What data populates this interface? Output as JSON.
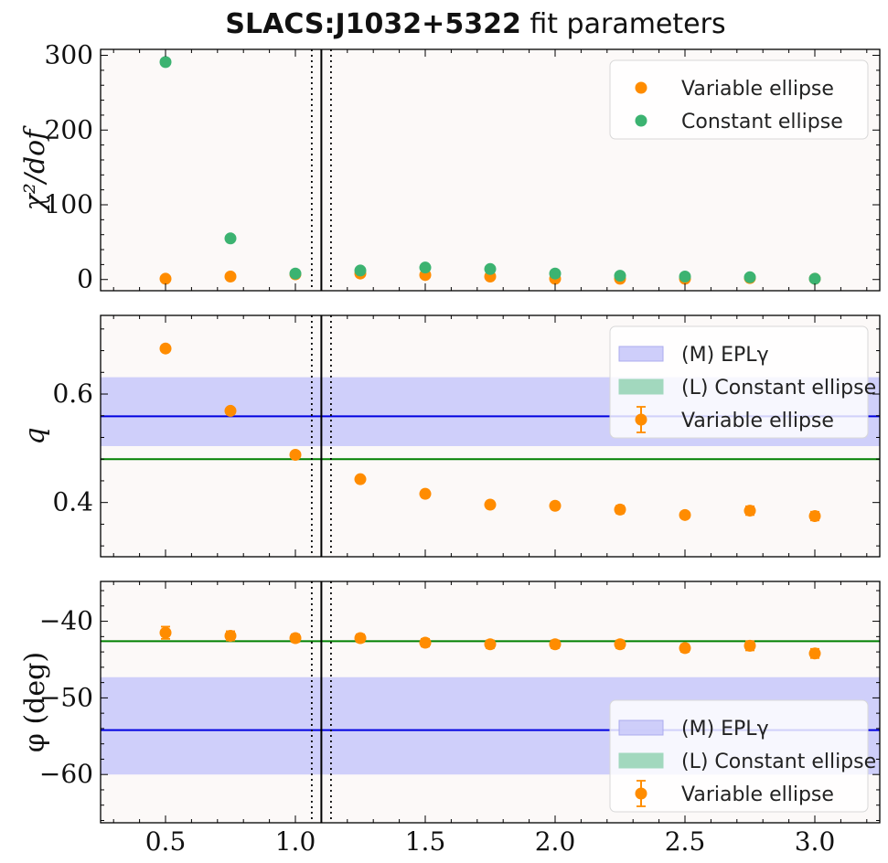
{
  "figure": {
    "title_bold": "SLACS:J1032+5322",
    "title_rest": " fit parameters",
    "colors": {
      "variable": "#ff8c00",
      "constant": "#3cb371",
      "epl_band": "#ccccfa",
      "epl_line": "#0000e0",
      "const_line": "#008000",
      "panel_bg": "#fcf9f8"
    }
  },
  "chart_data": [
    {
      "type": "scatter",
      "panel": "chi2",
      "ylabel": "χ²/dof",
      "xlim": [
        0.25,
        3.25
      ],
      "ylim": [
        -15,
        308
      ],
      "yticks": [
        0,
        100,
        200,
        300
      ],
      "ytick_labels": [
        "0",
        "100",
        "200",
        "300"
      ],
      "grid": false,
      "legend_position": "top-right",
      "vlines": [
        {
          "x": 1.1,
          "style": "solid"
        },
        {
          "x": 1.063,
          "style": "dotted"
        },
        {
          "x": 1.137,
          "style": "dotted"
        }
      ],
      "series": [
        {
          "name": "Variable ellipse",
          "color": "#ff8c00",
          "x": [
            0.5,
            0.75,
            1.0,
            1.25,
            1.5,
            1.75,
            2.0,
            2.25,
            2.5,
            2.75,
            3.0
          ],
          "y": [
            1,
            4,
            7,
            8,
            6,
            4,
            1,
            1,
            1,
            2,
            1
          ]
        },
        {
          "name": "Constant ellipse",
          "color": "#3cb371",
          "x": [
            0.5,
            0.75,
            1.0,
            1.25,
            1.5,
            1.75,
            2.0,
            2.25,
            2.5,
            2.75,
            3.0
          ],
          "y": [
            291,
            55,
            8,
            12,
            16,
            14,
            8,
            5,
            4,
            3,
            1
          ]
        }
      ]
    },
    {
      "type": "scatter",
      "panel": "q",
      "ylabel": "q",
      "xlim": [
        0.25,
        3.25
      ],
      "ylim": [
        0.3,
        0.745
      ],
      "yticks": [
        0.4,
        0.6
      ],
      "ytick_labels": [
        "0.4",
        "0.6"
      ],
      "grid": false,
      "legend_position": "top-right",
      "vlines": [
        {
          "x": 1.1,
          "style": "solid"
        },
        {
          "x": 1.063,
          "style": "dotted"
        },
        {
          "x": 1.137,
          "style": "dotted"
        }
      ],
      "bands": [
        {
          "name": "(M) EPLγ",
          "center": 0.559,
          "lower": 0.504,
          "upper": 0.631,
          "color": "#ccccfa",
          "line_color": "#0000e0"
        },
        {
          "name": "(L) Constant ellipse",
          "center": 0.48,
          "color": "#3cb371",
          "line_color": "#008000"
        }
      ],
      "series": [
        {
          "name": "Variable ellipse",
          "color": "#ff8c00",
          "x": [
            0.5,
            0.75,
            1.0,
            1.25,
            1.5,
            1.75,
            2.0,
            2.25,
            2.5,
            2.75,
            3.0
          ],
          "y": [
            0.684,
            0.569,
            0.488,
            0.443,
            0.416,
            0.396,
            0.394,
            0.387,
            0.377,
            0.385,
            0.375
          ],
          "err": [
            0.005,
            0.005,
            0.005,
            0.005,
            0.006,
            0.006,
            0.006,
            0.007,
            0.006,
            0.008,
            0.008
          ]
        }
      ]
    },
    {
      "type": "scatter",
      "panel": "phi",
      "ylabel": "φ (deg)",
      "xlabel": "",
      "xlim": [
        0.25,
        3.25
      ],
      "ylim": [
        -66.3,
        -34.8
      ],
      "xticks": [
        0.5,
        1.0,
        1.5,
        2.0,
        2.5,
        3.0
      ],
      "xtick_labels": [
        "0.5",
        "1.0",
        "1.5",
        "2.0",
        "2.5",
        "3.0"
      ],
      "yticks": [
        -40,
        -50,
        -60
      ],
      "ytick_labels": [
        "−40",
        "−50",
        "−60"
      ],
      "grid": false,
      "legend_position": "bottom-right",
      "vlines": [
        {
          "x": 1.1,
          "style": "solid"
        },
        {
          "x": 1.063,
          "style": "dotted"
        },
        {
          "x": 1.137,
          "style": "dotted"
        }
      ],
      "bands": [
        {
          "name": "(M) EPLγ",
          "center": -54.2,
          "lower": -60.0,
          "upper": -47.3,
          "color": "#ccccfa",
          "line_color": "#0000e0"
        },
        {
          "name": "(L) Constant ellipse",
          "center": -42.6,
          "color": "#3cb371",
          "line_color": "#008000"
        }
      ],
      "series": [
        {
          "name": "Variable ellipse",
          "color": "#ff8c00",
          "x": [
            0.5,
            0.75,
            1.0,
            1.25,
            1.5,
            1.75,
            2.0,
            2.25,
            2.5,
            2.75,
            3.0
          ],
          "y": [
            -41.5,
            -41.9,
            -42.2,
            -42.2,
            -42.8,
            -43.0,
            -43.0,
            -43.0,
            -43.5,
            -43.2,
            -44.2
          ],
          "err": [
            0.8,
            0.6,
            0.5,
            0.5,
            0.5,
            0.5,
            0.5,
            0.5,
            0.5,
            0.6,
            0.6
          ]
        }
      ]
    }
  ]
}
